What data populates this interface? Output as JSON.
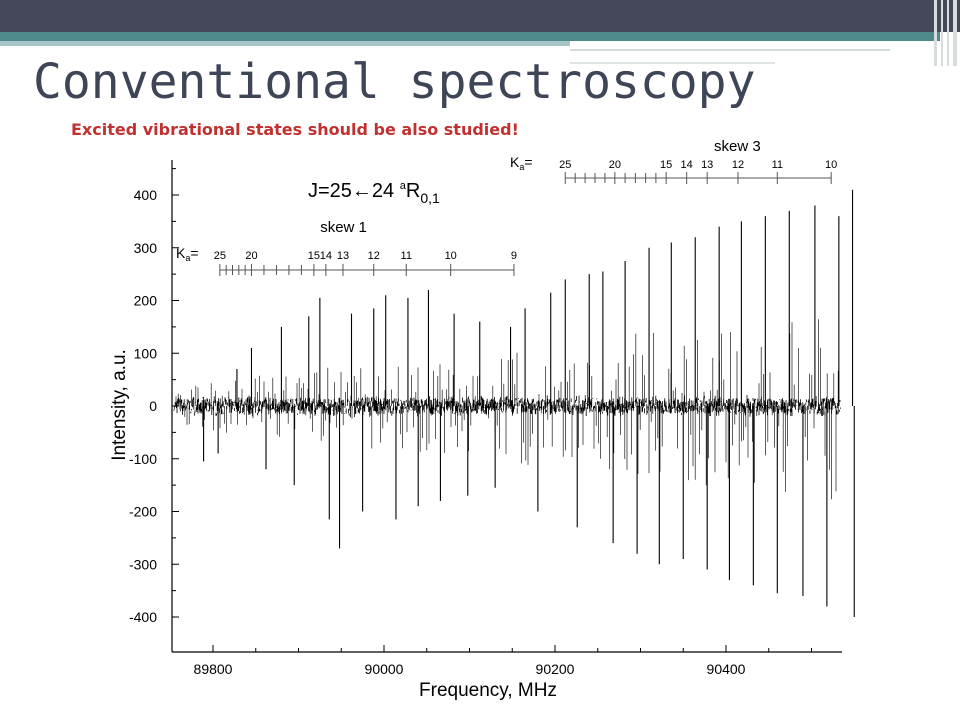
{
  "slide": {
    "title": "Conventional spectroscopy",
    "subtitle": "Excited vibrational states should be also studied!"
  },
  "colors": {
    "header_bar": "#44485a",
    "accent_teal": "#4e8a8c",
    "title": "#3d4556",
    "subtitle": "#c0312f",
    "trace": "#000000"
  },
  "chart_data": {
    "type": "line",
    "xlabel": "Frequency, MHz",
    "ylabel": "Intensity, a.u.",
    "xlim": [
      89750,
      90565
    ],
    "ylim": [
      -440,
      460
    ],
    "xticks": [
      89800,
      90000,
      90200,
      90400
    ],
    "xtick_labels": [
      "89800",
      "90000",
      "90200",
      "90400"
    ],
    "yticks": [
      400,
      300,
      200,
      100,
      0,
      -100,
      -200,
      -300,
      -400
    ],
    "ytick_labels": [
      "400",
      "300",
      "200",
      "100",
      "0",
      "-100",
      "-200",
      "-300",
      "-400"
    ],
    "transition_label": {
      "main": "J=25←24 ",
      "sup": "a",
      "r": "R",
      "sub": "0,1"
    },
    "series": [
      {
        "values": "dense noisy spectrum, baseline 0 ± ~20",
        "peaks": [
          {
            "x": 89789,
            "y": -105
          },
          {
            "x": 89806,
            "y": -90
          },
          {
            "x": 89828,
            "y": 70
          },
          {
            "x": 89845,
            "y": 110
          },
          {
            "x": 89862,
            "y": -120
          },
          {
            "x": 89880,
            "y": 150
          },
          {
            "x": 89895,
            "y": -150
          },
          {
            "x": 89912,
            "y": 170
          },
          {
            "x": 89925,
            "y": 205
          },
          {
            "x": 89936,
            "y": -215
          },
          {
            "x": 89948,
            "y": -270
          },
          {
            "x": 89962,
            "y": 175
          },
          {
            "x": 89975,
            "y": -200
          },
          {
            "x": 89988,
            "y": 185
          },
          {
            "x": 90002,
            "y": 210
          },
          {
            "x": 90014,
            "y": -215
          },
          {
            "x": 90028,
            "y": 205
          },
          {
            "x": 90040,
            "y": -190
          },
          {
            "x": 90052,
            "y": 220
          },
          {
            "x": 90066,
            "y": -180
          },
          {
            "x": 90082,
            "y": 175
          },
          {
            "x": 90098,
            "y": -170
          },
          {
            "x": 90112,
            "y": 160
          },
          {
            "x": 90130,
            "y": -155
          },
          {
            "x": 90148,
            "y": 150
          },
          {
            "x": 90165,
            "y": 185
          },
          {
            "x": 90180,
            "y": -200
          },
          {
            "x": 90195,
            "y": 215
          },
          {
            "x": 90212,
            "y": 240
          },
          {
            "x": 90226,
            "y": -230
          },
          {
            "x": 90240,
            "y": 250
          },
          {
            "x": 90256,
            "y": 255
          },
          {
            "x": 90268,
            "y": -260
          },
          {
            "x": 90282,
            "y": 275
          },
          {
            "x": 90296,
            "y": -280
          },
          {
            "x": 90310,
            "y": 300
          },
          {
            "x": 90322,
            "y": -300
          },
          {
            "x": 90336,
            "y": 310
          },
          {
            "x": 90350,
            "y": -290
          },
          {
            "x": 90364,
            "y": 320
          },
          {
            "x": 90378,
            "y": -310
          },
          {
            "x": 90392,
            "y": 340
          },
          {
            "x": 90404,
            "y": -330
          },
          {
            "x": 90418,
            "y": 350
          },
          {
            "x": 90432,
            "y": -340
          },
          {
            "x": 90446,
            "y": 360
          },
          {
            "x": 90460,
            "y": -355
          },
          {
            "x": 90474,
            "y": 370
          },
          {
            "x": 90490,
            "y": -360
          },
          {
            "x": 90504,
            "y": 380
          },
          {
            "x": 90518,
            "y": -380
          },
          {
            "x": 90532,
            "y": 360
          },
          {
            "x": 90548,
            "y": 410
          },
          {
            "x": 90550,
            "y": -400
          }
        ]
      }
    ],
    "annotations": [
      {
        "name": "skew 1",
        "ka_label": "K",
        "ka_sub": "a",
        "ka_eq": "=",
        "ticks": [
          {
            "label": "25",
            "x": 89808
          },
          {
            "label": "20",
            "x": 89845
          },
          {
            "label": "15",
            "x": 89918
          },
          {
            "label": "14",
            "x": 89932
          },
          {
            "label": "13",
            "x": 89952
          },
          {
            "label": "12",
            "x": 89988
          },
          {
            "label": "11",
            "x": 90026
          },
          {
            "label": "10",
            "x": 90078
          },
          {
            "label": "9",
            "x": 90152
          }
        ]
      },
      {
        "name": "skew 3",
        "ka_label": "K",
        "ka_sub": "a",
        "ka_eq": "=",
        "ticks": [
          {
            "label": "25",
            "x": 90212
          },
          {
            "label": "20",
            "x": 90270
          },
          {
            "label": "15",
            "x": 90330
          },
          {
            "label": "14",
            "x": 90354
          },
          {
            "label": "13",
            "x": 90378
          },
          {
            "label": "12",
            "x": 90414
          },
          {
            "label": "11",
            "x": 90460
          },
          {
            "label": "10",
            "x": 90523
          }
        ]
      }
    ]
  }
}
